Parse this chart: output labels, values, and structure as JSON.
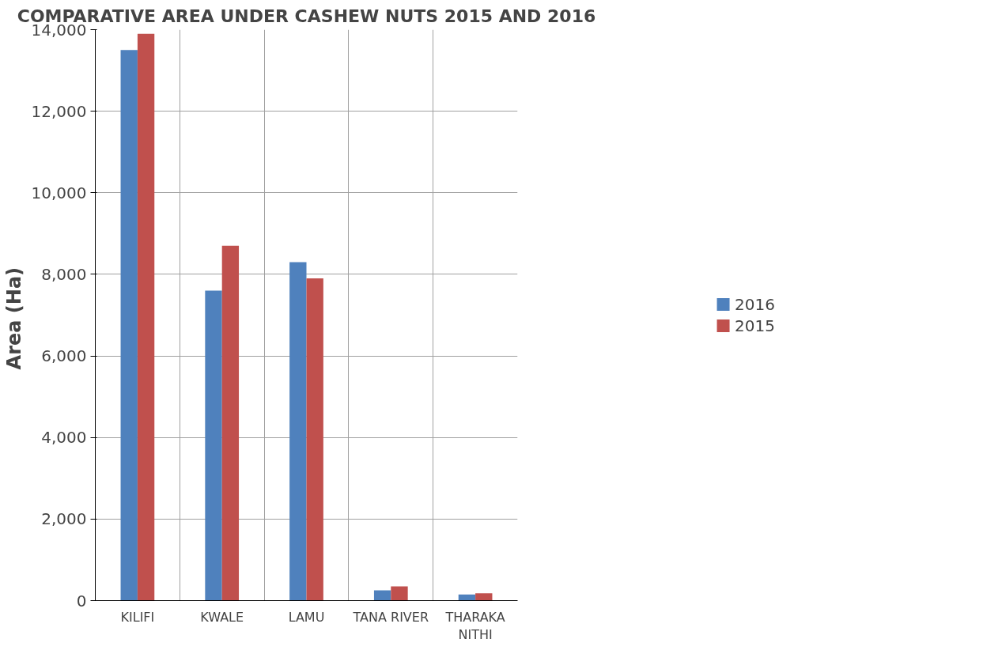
{
  "chart_data": {
    "type": "bar",
    "title": "COMPARATIVE AREA UNDER CASHEW NUTS 2015 AND 2016",
    "ylabel": "Area  (Ha)",
    "categories": [
      "KILIFI",
      "KWALE",
      "LAMU",
      "TANA RIVER",
      "THARAKA\nNITHI"
    ],
    "series": [
      {
        "name": "2016",
        "color": "#4f81bd",
        "values": [
          13500,
          7600,
          8300,
          250,
          150
        ]
      },
      {
        "name": "2015",
        "color": "#c0504d",
        "values": [
          13900,
          8700,
          7900,
          350,
          180
        ]
      }
    ],
    "ylim": [
      0,
      14000
    ],
    "yticks": [
      {
        "value": 0,
        "label": "0"
      },
      {
        "value": 2000,
        "label": "2,000"
      },
      {
        "value": 4000,
        "label": "4,000"
      },
      {
        "value": 6000,
        "label": "6,000"
      },
      {
        "value": 8000,
        "label": "8,000"
      },
      {
        "value": 10000,
        "label": "10,000"
      },
      {
        "value": 12000,
        "label": "12,000"
      },
      {
        "value": 14000,
        "label": "14,000"
      }
    ],
    "grid": true,
    "legend": "right"
  }
}
